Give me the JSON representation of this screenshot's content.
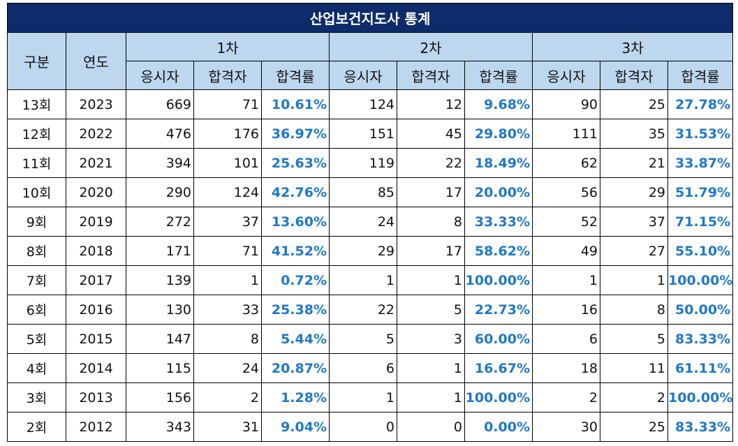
{
  "title": "산업보건지도사 통계",
  "headers": {
    "category": "구분",
    "year": "연도",
    "rounds": [
      "1차",
      "2차",
      "3차"
    ],
    "sub": [
      "응시자",
      "합격자",
      "합격률"
    ]
  },
  "rows": [
    {
      "label": "13회",
      "year": "2023",
      "r1": [
        "669",
        "71",
        "10.61%"
      ],
      "r2": [
        "124",
        "12",
        "9.68%"
      ],
      "r3": [
        "90",
        "25",
        "27.78%"
      ]
    },
    {
      "label": "12회",
      "year": "2022",
      "r1": [
        "476",
        "176",
        "36.97%"
      ],
      "r2": [
        "151",
        "45",
        "29.80%"
      ],
      "r3": [
        "111",
        "35",
        "31.53%"
      ]
    },
    {
      "label": "11회",
      "year": "2021",
      "r1": [
        "394",
        "101",
        "25.63%"
      ],
      "r2": [
        "119",
        "22",
        "18.49%"
      ],
      "r3": [
        "62",
        "21",
        "33.87%"
      ]
    },
    {
      "label": "10회",
      "year": "2020",
      "r1": [
        "290",
        "124",
        "42.76%"
      ],
      "r2": [
        "85",
        "17",
        "20.00%"
      ],
      "r3": [
        "56",
        "29",
        "51.79%"
      ]
    },
    {
      "label": "9회",
      "year": "2019",
      "r1": [
        "272",
        "37",
        "13.60%"
      ],
      "r2": [
        "24",
        "8",
        "33.33%"
      ],
      "r3": [
        "52",
        "37",
        "71.15%"
      ]
    },
    {
      "label": "8회",
      "year": "2018",
      "r1": [
        "171",
        "71",
        "41.52%"
      ],
      "r2": [
        "29",
        "17",
        "58.62%"
      ],
      "r3": [
        "49",
        "27",
        "55.10%"
      ]
    },
    {
      "label": "7회",
      "year": "2017",
      "r1": [
        "139",
        "1",
        "0.72%"
      ],
      "r2": [
        "1",
        "1",
        "100.00%"
      ],
      "r3": [
        "1",
        "1",
        "100.00%"
      ]
    },
    {
      "label": "6회",
      "year": "2016",
      "r1": [
        "130",
        "33",
        "25.38%"
      ],
      "r2": [
        "22",
        "5",
        "22.73%"
      ],
      "r3": [
        "16",
        "8",
        "50.00%"
      ]
    },
    {
      "label": "5회",
      "year": "2015",
      "r1": [
        "147",
        "8",
        "5.44%"
      ],
      "r2": [
        "5",
        "3",
        "60.00%"
      ],
      "r3": [
        "6",
        "5",
        "83.33%"
      ]
    },
    {
      "label": "4회",
      "year": "2014",
      "r1": [
        "115",
        "24",
        "20.87%"
      ],
      "r2": [
        "6",
        "1",
        "16.67%"
      ],
      "r3": [
        "18",
        "11",
        "61.11%"
      ]
    },
    {
      "label": "3회",
      "year": "2013",
      "r1": [
        "156",
        "2",
        "1.28%"
      ],
      "r2": [
        "1",
        "1",
        "100.00%"
      ],
      "r3": [
        "2",
        "2",
        "100.00%"
      ]
    },
    {
      "label": "2회",
      "year": "2012",
      "r1": [
        "343",
        "31",
        "9.04%"
      ],
      "r2": [
        "0",
        "0",
        "0.00%"
      ],
      "r3": [
        "30",
        "25",
        "83.33%"
      ]
    }
  ],
  "colors": {
    "title_bg": "#0e2c6b",
    "header_bg": "#bdd7ee",
    "rate_text": "#1f78c8"
  }
}
